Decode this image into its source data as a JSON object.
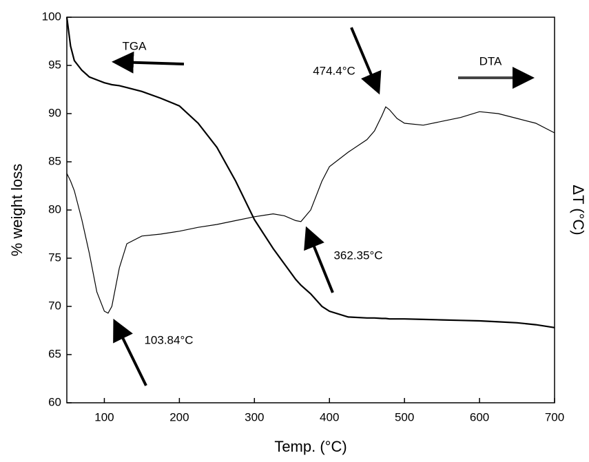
{
  "chart_data": {
    "type": "line",
    "xlabel": "Temp. (°C)",
    "ylabel": "% weight loss",
    "y2label": "ΔT (°C)",
    "x": [
      50,
      55,
      60,
      70,
      80,
      90,
      100,
      105,
      110,
      120,
      130,
      150,
      175,
      200,
      225,
      250,
      275,
      300,
      325,
      340,
      355,
      362,
      375,
      390,
      400,
      425,
      450,
      460,
      470,
      475,
      480,
      490,
      500,
      525,
      550,
      575,
      600,
      625,
      650,
      675,
      700
    ],
    "series": [
      {
        "name": "TGA",
        "color": "#000000",
        "values": [
          100,
          97,
          95.5,
          94.5,
          93.8,
          93.5,
          93.2,
          93.1,
          93,
          92.9,
          92.7,
          92.3,
          91.6,
          90.8,
          89,
          86.5,
          83,
          79,
          76,
          74.4,
          72.8,
          72.2,
          71.3,
          70,
          69.5,
          68.9,
          68.8,
          68.8,
          68.75,
          68.75,
          68.7,
          68.7,
          68.7,
          68.65,
          68.6,
          68.55,
          68.5,
          68.4,
          68.3,
          68.1,
          67.8
        ]
      },
      {
        "name": "DTA",
        "color": "#000000",
        "axis": "y2",
        "values": [
          83.8,
          83,
          82,
          79,
          75.5,
          71.5,
          69.5,
          69.3,
          70,
          74,
          76.5,
          77.3,
          77.5,
          77.8,
          78.2,
          78.5,
          78.9,
          79.3,
          79.6,
          79.4,
          78.9,
          78.8,
          80,
          83,
          84.5,
          86,
          87.3,
          88.2,
          89.8,
          90.7,
          90.4,
          89.5,
          89,
          88.8,
          89.2,
          89.6,
          90.2,
          90,
          89.5,
          89,
          88
        ]
      }
    ],
    "xlim": [
      50,
      700
    ],
    "xticks": [
      100,
      200,
      300,
      400,
      500,
      600,
      700
    ],
    "ylim": [
      60,
      100
    ],
    "yticks": [
      60,
      65,
      70,
      75,
      80,
      85,
      90,
      95,
      100
    ],
    "y2lim": [
      60,
      100
    ],
    "annotations": [
      "TGA",
      "DTA",
      "474.4°C",
      "362.35°C",
      "103.84°C"
    ]
  }
}
